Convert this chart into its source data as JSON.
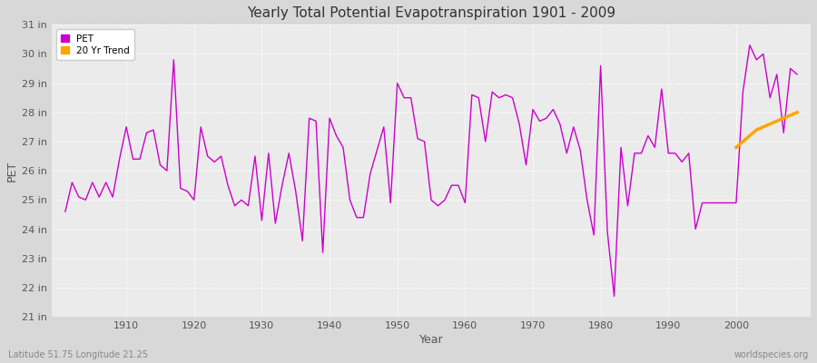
{
  "title": "Yearly Total Potential Evapotranspiration 1901 - 2009",
  "xlabel": "Year",
  "ylabel": "PET",
  "bottom_left": "Latitude 51.75 Longitude 21.25",
  "bottom_right": "worldspecies.org",
  "pet_color": "#cc00cc",
  "trend_color": "#ffa500",
  "fig_bg": "#d8d8d8",
  "plot_bg": "#ebebeb",
  "ylim": [
    21,
    31
  ],
  "xlim": [
    1899,
    2011
  ],
  "yticks": [
    21,
    22,
    23,
    24,
    25,
    26,
    27,
    28,
    29,
    30,
    31
  ],
  "ytick_labels": [
    "21 in",
    "22 in",
    "23 in",
    "24 in",
    "25 in",
    "26 in",
    "27 in",
    "28 in",
    "29 in",
    "30 in",
    "31 in"
  ],
  "xticks": [
    1910,
    1920,
    1930,
    1940,
    1950,
    1960,
    1970,
    1980,
    1990,
    2000
  ],
  "years": [
    1901,
    1902,
    1903,
    1904,
    1905,
    1906,
    1907,
    1908,
    1909,
    1910,
    1911,
    1912,
    1913,
    1914,
    1915,
    1916,
    1917,
    1918,
    1919,
    1920,
    1921,
    1922,
    1923,
    1924,
    1925,
    1926,
    1927,
    1928,
    1929,
    1930,
    1931,
    1932,
    1933,
    1934,
    1935,
    1936,
    1937,
    1938,
    1939,
    1940,
    1941,
    1942,
    1943,
    1944,
    1945,
    1946,
    1947,
    1948,
    1949,
    1950,
    1951,
    1952,
    1953,
    1954,
    1955,
    1956,
    1957,
    1958,
    1959,
    1960,
    1961,
    1962,
    1963,
    1964,
    1965,
    1966,
    1967,
    1968,
    1969,
    1970,
    1971,
    1972,
    1973,
    1974,
    1975,
    1976,
    1977,
    1978,
    1979,
    1980,
    1981,
    1982,
    1983,
    1984,
    1985,
    1986,
    1987,
    1988,
    1989,
    1990,
    1991,
    1992,
    1993,
    1994,
    1995,
    1996,
    1997,
    1998,
    1999,
    2000,
    2001,
    2002,
    2003,
    2004,
    2005,
    2006,
    2007,
    2008,
    2009
  ],
  "pet_values": [
    24.6,
    25.6,
    25.1,
    25.0,
    25.6,
    25.1,
    25.6,
    25.1,
    26.4,
    27.5,
    26.4,
    26.4,
    27.3,
    27.4,
    26.2,
    26.0,
    29.8,
    25.4,
    25.3,
    25.0,
    27.5,
    26.5,
    26.3,
    26.5,
    25.5,
    24.8,
    25.0,
    24.8,
    26.5,
    24.3,
    26.6,
    24.2,
    25.5,
    26.6,
    25.3,
    23.6,
    27.8,
    27.7,
    23.2,
    27.8,
    27.2,
    26.8,
    25.0,
    24.4,
    24.4,
    25.9,
    26.7,
    27.5,
    24.9,
    29.0,
    28.5,
    28.5,
    27.1,
    27.0,
    25.0,
    24.8,
    25.0,
    25.5,
    25.5,
    24.9,
    28.6,
    28.5,
    27.0,
    28.7,
    28.5,
    28.6,
    28.5,
    27.6,
    26.2,
    28.1,
    27.7,
    27.8,
    28.1,
    27.6,
    26.6,
    27.5,
    26.7,
    25.0,
    23.8,
    29.6,
    23.9,
    21.7,
    26.8,
    24.8,
    26.6,
    26.6,
    27.2,
    26.8,
    28.8,
    26.6,
    26.6,
    26.3,
    26.6,
    24.0,
    24.9,
    24.9,
    24.9,
    24.9,
    24.9,
    24.9,
    28.7,
    30.3,
    29.8,
    30.0,
    28.5,
    29.3,
    27.3,
    29.5,
    29.3
  ],
  "trend_years": [
    2000,
    2001,
    2002,
    2003,
    2004,
    2005,
    2006,
    2007,
    2008,
    2009
  ],
  "trend_values": [
    26.8,
    27.0,
    27.2,
    27.4,
    27.5,
    27.6,
    27.7,
    27.8,
    27.9,
    28.0
  ]
}
